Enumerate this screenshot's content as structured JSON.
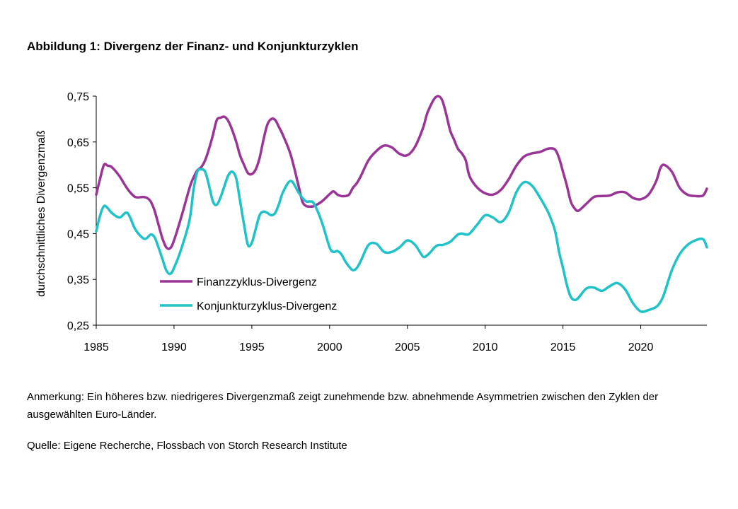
{
  "figure": {
    "title": "Abbildung 1: Divergenz der Finanz- und Konjunkturzyklen",
    "note": "Anmerkung: Ein höheres bzw. niedrigeres Divergenzmaß zeigt zunehmende bzw. abnehmende Asymmetrien zwischen den Zyklen der ausgewählten Euro-Länder.",
    "source": "Quelle: Eigene Recherche, Flossbach von Storch Research Institute"
  },
  "chart_data": {
    "type": "line",
    "title": "Abbildung 1: Divergenz der Finanz- und Konjunkturzyklen",
    "xlabel": "",
    "ylabel": "durchschnittliches Divergenzmaß",
    "xlim": [
      1985,
      2024.25
    ],
    "ylim": [
      0.25,
      0.75
    ],
    "x_ticks": [
      "1985",
      "1990",
      "1995",
      "2000",
      "2005",
      "2010",
      "2015",
      "2020"
    ],
    "y_ticks": [
      "0,25",
      "0,35",
      "0,45",
      "0,55",
      "0,65",
      "0,75"
    ],
    "grid": false,
    "legend_position": "center-left",
    "series": [
      {
        "name": "Finanzzyklus-Divergenz",
        "color": "#9B3497",
        "x": [
          1985.0,
          1985.25,
          1985.5,
          1985.75,
          1986.0,
          1986.5,
          1987.0,
          1987.5,
          1988.0,
          1988.25,
          1988.5,
          1988.75,
          1989.0,
          1989.25,
          1989.5,
          1989.75,
          1990.0,
          1990.5,
          1991.0,
          1991.25,
          1991.5,
          1991.75,
          1992.0,
          1992.25,
          1992.5,
          1992.75,
          1993.0,
          1993.25,
          1993.5,
          1993.75,
          1994.0,
          1994.25,
          1994.5,
          1994.75,
          1995.0,
          1995.25,
          1995.5,
          1995.75,
          1996.0,
          1996.25,
          1996.5,
          1996.75,
          1997.0,
          1997.5,
          1998.0,
          1998.25,
          1998.5,
          1998.75,
          1999.0,
          1999.5,
          2000.0,
          2000.25,
          2000.5,
          2000.75,
          2001.0,
          2001.25,
          2001.5,
          2001.75,
          2002.0,
          2002.5,
          2003.0,
          2003.5,
          2004.0,
          2004.5,
          2005.0,
          2005.5,
          2006.0,
          2006.25,
          2006.5,
          2006.75,
          2007.0,
          2007.25,
          2007.5,
          2007.75,
          2008.0,
          2008.25,
          2008.5,
          2008.75,
          2009.0,
          2009.5,
          2010.0,
          2010.5,
          2011.0,
          2011.5,
          2012.0,
          2012.5,
          2013.0,
          2013.5,
          2014.0,
          2014.25,
          2014.5,
          2014.75,
          2015.0,
          2015.25,
          2015.5,
          2015.75,
          2016.0,
          2016.5,
          2017.0,
          2017.5,
          2018.0,
          2018.5,
          2019.0,
          2019.5,
          2020.0,
          2020.5,
          2021.0,
          2021.25,
          2021.5,
          2022.0,
          2022.5,
          2023.0,
          2023.5,
          2024.0,
          2024.25
        ],
        "y": [
          0.535,
          0.57,
          0.6,
          0.598,
          0.595,
          0.575,
          0.548,
          0.53,
          0.53,
          0.528,
          0.52,
          0.5,
          0.47,
          0.44,
          0.42,
          0.418,
          0.435,
          0.49,
          0.55,
          0.572,
          0.588,
          0.595,
          0.61,
          0.635,
          0.665,
          0.698,
          0.703,
          0.705,
          0.695,
          0.675,
          0.65,
          0.62,
          0.6,
          0.582,
          0.58,
          0.59,
          0.615,
          0.655,
          0.688,
          0.7,
          0.698,
          0.682,
          0.665,
          0.622,
          0.555,
          0.52,
          0.51,
          0.509,
          0.51,
          0.52,
          0.536,
          0.542,
          0.535,
          0.532,
          0.532,
          0.535,
          0.55,
          0.56,
          0.575,
          0.61,
          0.63,
          0.642,
          0.638,
          0.624,
          0.621,
          0.64,
          0.68,
          0.71,
          0.73,
          0.745,
          0.75,
          0.74,
          0.71,
          0.675,
          0.655,
          0.635,
          0.625,
          0.61,
          0.575,
          0.55,
          0.538,
          0.535,
          0.545,
          0.568,
          0.598,
          0.618,
          0.625,
          0.628,
          0.635,
          0.636,
          0.633,
          0.615,
          0.585,
          0.555,
          0.52,
          0.505,
          0.5,
          0.515,
          0.53,
          0.532,
          0.533,
          0.54,
          0.54,
          0.528,
          0.525,
          0.535,
          0.565,
          0.592,
          0.6,
          0.585,
          0.55,
          0.535,
          0.532,
          0.533,
          0.548
        ]
      },
      {
        "name": "Konjunkturzyklus-Divergenz",
        "color": "#1EC2C8",
        "x": [
          1985.0,
          1985.25,
          1985.5,
          1985.75,
          1986.0,
          1986.5,
          1987.0,
          1987.5,
          1988.0,
          1988.25,
          1988.5,
          1988.75,
          1989.0,
          1989.25,
          1989.5,
          1989.75,
          1990.0,
          1990.5,
          1991.0,
          1991.25,
          1991.5,
          1991.75,
          1992.0,
          1992.25,
          1992.5,
          1992.75,
          1993.0,
          1993.25,
          1993.5,
          1993.75,
          1994.0,
          1994.25,
          1994.5,
          1994.75,
          1995.0,
          1995.25,
          1995.5,
          1995.75,
          1996.0,
          1996.25,
          1996.5,
          1996.75,
          1997.0,
          1997.5,
          1998.0,
          1998.25,
          1998.5,
          1998.75,
          1999.0,
          1999.5,
          2000.0,
          2000.25,
          2000.5,
          2000.75,
          2001.0,
          2001.25,
          2001.5,
          2001.75,
          2002.0,
          2002.5,
          2003.0,
          2003.5,
          2004.0,
          2004.5,
          2005.0,
          2005.5,
          2006.0,
          2006.25,
          2006.5,
          2006.75,
          2007.0,
          2007.25,
          2007.5,
          2007.75,
          2008.0,
          2008.25,
          2008.5,
          2008.75,
          2009.0,
          2009.5,
          2010.0,
          2010.5,
          2011.0,
          2011.5,
          2012.0,
          2012.5,
          2013.0,
          2013.5,
          2014.0,
          2014.25,
          2014.5,
          2014.75,
          2015.0,
          2015.25,
          2015.5,
          2015.75,
          2016.0,
          2016.5,
          2017.0,
          2017.5,
          2018.0,
          2018.5,
          2019.0,
          2019.5,
          2020.0,
          2020.5,
          2021.0,
          2021.25,
          2021.5,
          2022.0,
          2022.5,
          2023.0,
          2023.5,
          2024.0,
          2024.25
        ],
        "y": [
          0.455,
          0.49,
          0.51,
          0.505,
          0.495,
          0.485,
          0.495,
          0.46,
          0.44,
          0.44,
          0.448,
          0.442,
          0.42,
          0.395,
          0.37,
          0.362,
          0.375,
          0.42,
          0.48,
          0.545,
          0.585,
          0.59,
          0.585,
          0.555,
          0.52,
          0.513,
          0.53,
          0.555,
          0.578,
          0.585,
          0.57,
          0.52,
          0.47,
          0.425,
          0.43,
          0.46,
          0.49,
          0.498,
          0.495,
          0.49,
          0.495,
          0.515,
          0.54,
          0.565,
          0.54,
          0.528,
          0.52,
          0.52,
          0.515,
          0.475,
          0.42,
          0.41,
          0.412,
          0.405,
          0.39,
          0.378,
          0.37,
          0.375,
          0.39,
          0.425,
          0.428,
          0.41,
          0.41,
          0.42,
          0.435,
          0.425,
          0.4,
          0.402,
          0.41,
          0.42,
          0.425,
          0.425,
          0.428,
          0.432,
          0.44,
          0.448,
          0.45,
          0.448,
          0.45,
          0.47,
          0.49,
          0.485,
          0.475,
          0.495,
          0.54,
          0.562,
          0.555,
          0.53,
          0.5,
          0.48,
          0.455,
          0.41,
          0.375,
          0.338,
          0.312,
          0.305,
          0.31,
          0.33,
          0.332,
          0.325,
          0.335,
          0.342,
          0.328,
          0.298,
          0.28,
          0.283,
          0.29,
          0.3,
          0.318,
          0.37,
          0.405,
          0.425,
          0.435,
          0.438,
          0.42
        ]
      }
    ]
  }
}
